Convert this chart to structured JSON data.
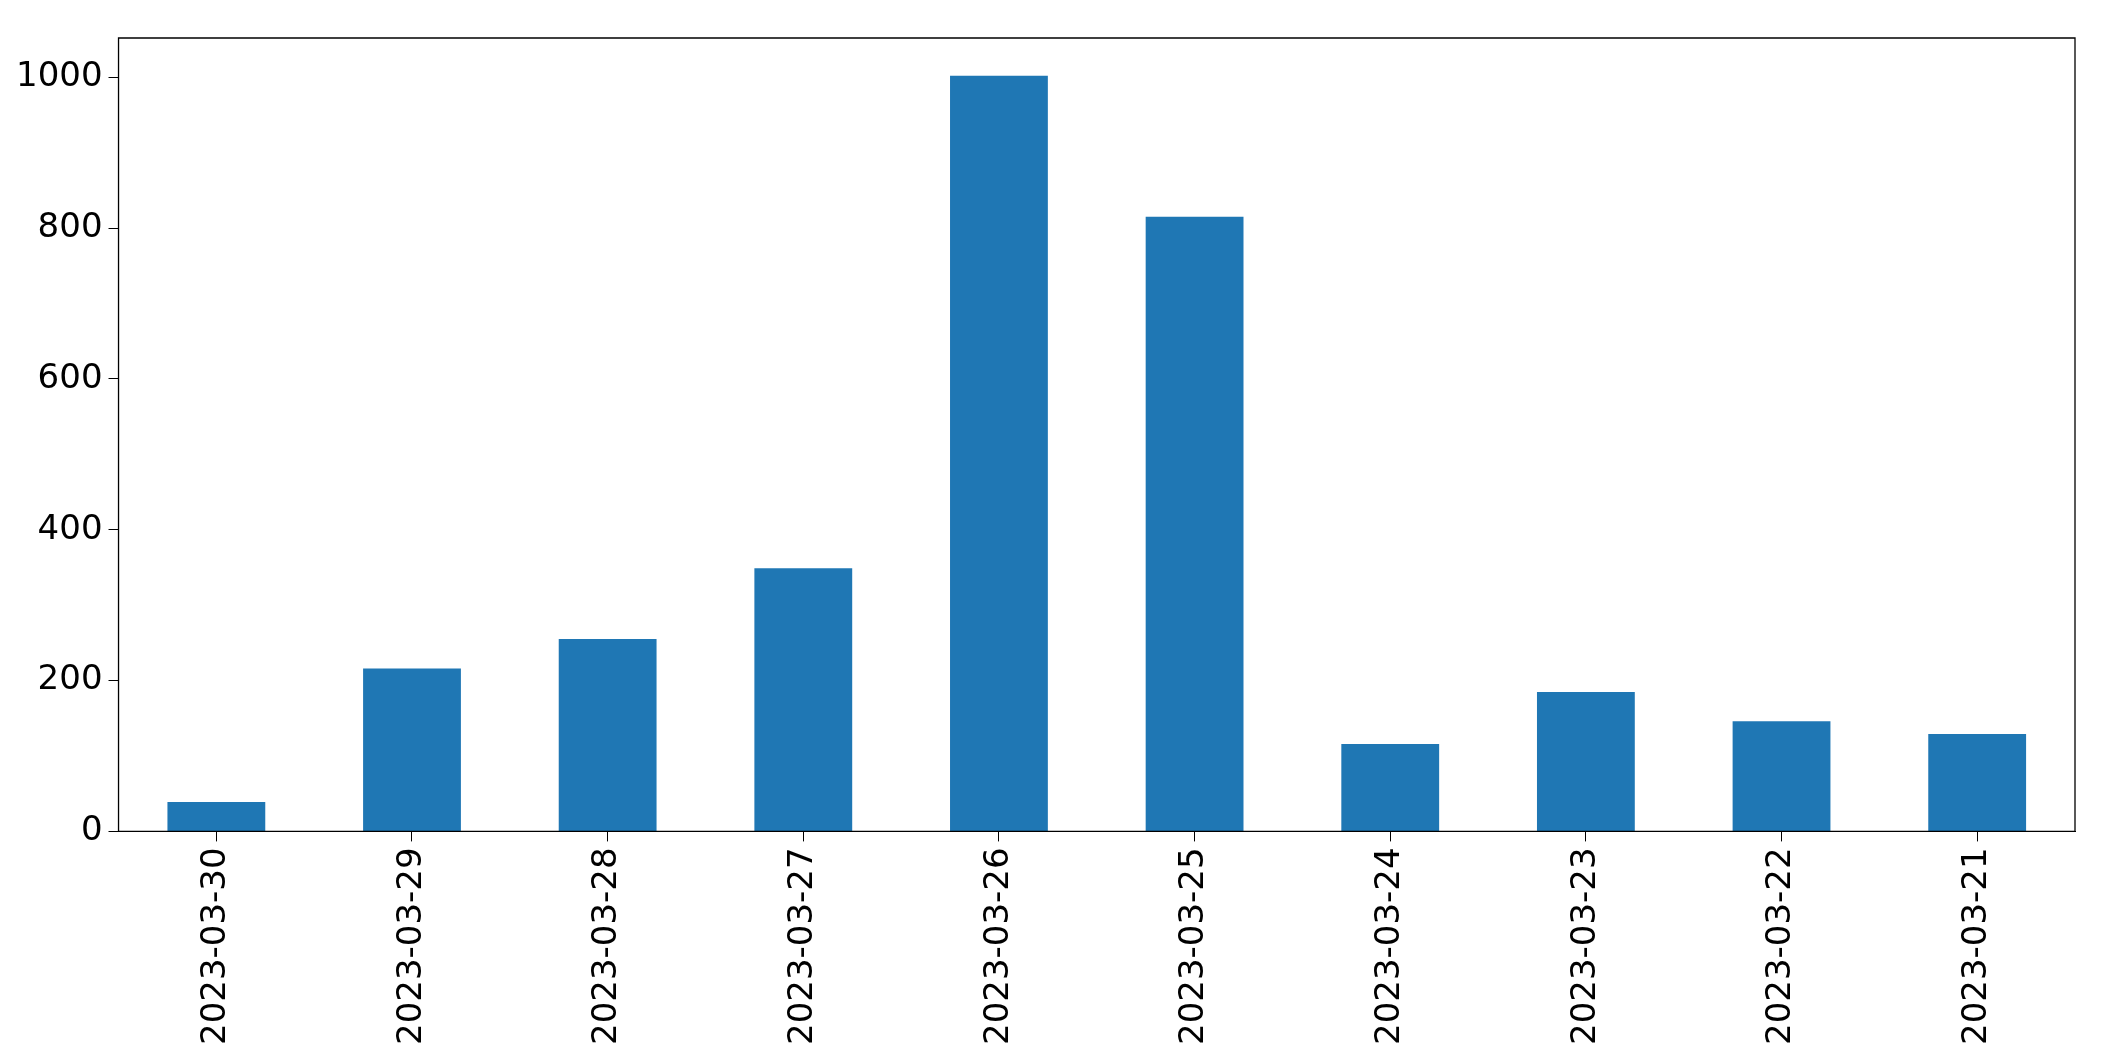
{
  "chart_data": {
    "type": "bar",
    "categories": [
      "2023-03-30",
      "2023-03-29",
      "2023-03-28",
      "2023-03-27",
      "2023-03-26",
      "2023-03-25",
      "2023-03-24",
      "2023-03-23",
      "2023-03-22",
      "2023-03-21"
    ],
    "values": [
      39,
      216,
      255,
      349,
      1002,
      815,
      116,
      185,
      146,
      129
    ],
    "color": "#1f77b4",
    "ylim": [
      0,
      1052
    ],
    "yticks": [
      0,
      200,
      400,
      600,
      800,
      1000
    ],
    "grid": false,
    "legend": false
  }
}
